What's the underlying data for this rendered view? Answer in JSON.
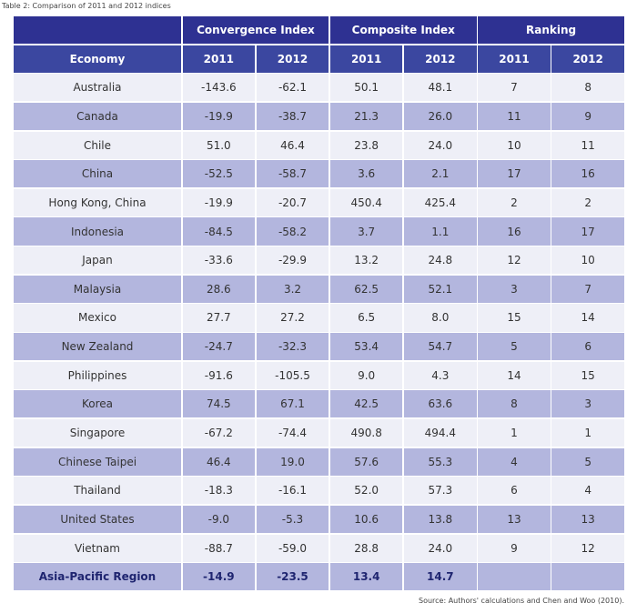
{
  "caption": "Table 2: Comparison of 2011 and 2012 indices",
  "header": {
    "groups": [
      "Convergence Index",
      "Composite Index",
      "Ranking"
    ],
    "columns": [
      "Economy",
      "2011",
      "2012",
      "2011",
      "2012",
      "2011",
      "2012"
    ]
  },
  "table": {
    "rows": [
      [
        "Australia",
        "-143.6",
        "-62.1",
        "50.1",
        "48.1",
        "7",
        "8"
      ],
      [
        "Canada",
        "-19.9",
        "-38.7",
        "21.3",
        "26.0",
        "11",
        "9"
      ],
      [
        "Chile",
        "51.0",
        "46.4",
        "23.8",
        "24.0",
        "10",
        "11"
      ],
      [
        "China",
        "-52.5",
        "-58.7",
        "3.6",
        "2.1",
        "17",
        "16"
      ],
      [
        "Hong Kong, China",
        "-19.9",
        "-20.7",
        "450.4",
        "425.4",
        "2",
        "2"
      ],
      [
        "Indonesia",
        "-84.5",
        "-58.2",
        "3.7",
        "1.1",
        "16",
        "17"
      ],
      [
        "Japan",
        "-33.6",
        "-29.9",
        "13.2",
        "24.8",
        "12",
        "10"
      ],
      [
        "Malaysia",
        "28.6",
        "3.2",
        "62.5",
        "52.1",
        "3",
        "7"
      ],
      [
        "Mexico",
        "27.7",
        "27.2",
        "6.5",
        "8.0",
        "15",
        "14"
      ],
      [
        "New Zealand",
        "-24.7",
        "-32.3",
        "53.4",
        "54.7",
        "5",
        "6"
      ],
      [
        "Philippines",
        "-91.6",
        "-105.5",
        "9.0",
        "4.3",
        "14",
        "15"
      ],
      [
        "Korea",
        "74.5",
        "67.1",
        "42.5",
        "63.6",
        "8",
        "3"
      ],
      [
        "Singapore",
        "-67.2",
        "-74.4",
        "490.8",
        "494.4",
        "1",
        "1"
      ],
      [
        "Chinese Taipei",
        "46.4",
        "19.0",
        "57.6",
        "55.3",
        "4",
        "5"
      ],
      [
        "Thailand",
        "-18.3",
        "-16.1",
        "52.0",
        "57.3",
        "6",
        "4"
      ],
      [
        "United States",
        "-9.0",
        "-5.3",
        "10.6",
        "13.8",
        "13",
        "13"
      ],
      [
        "Vietnam",
        "-88.7",
        "-59.0",
        "28.8",
        "24.0",
        "9",
        "12"
      ]
    ],
    "total": [
      "Asia-Pacific Region",
      "-14.9",
      "-23.5",
      "13.4",
      "14.7"
    ]
  },
  "source": "Source: Authors' calculations and Chen and Woo (2010)."
}
